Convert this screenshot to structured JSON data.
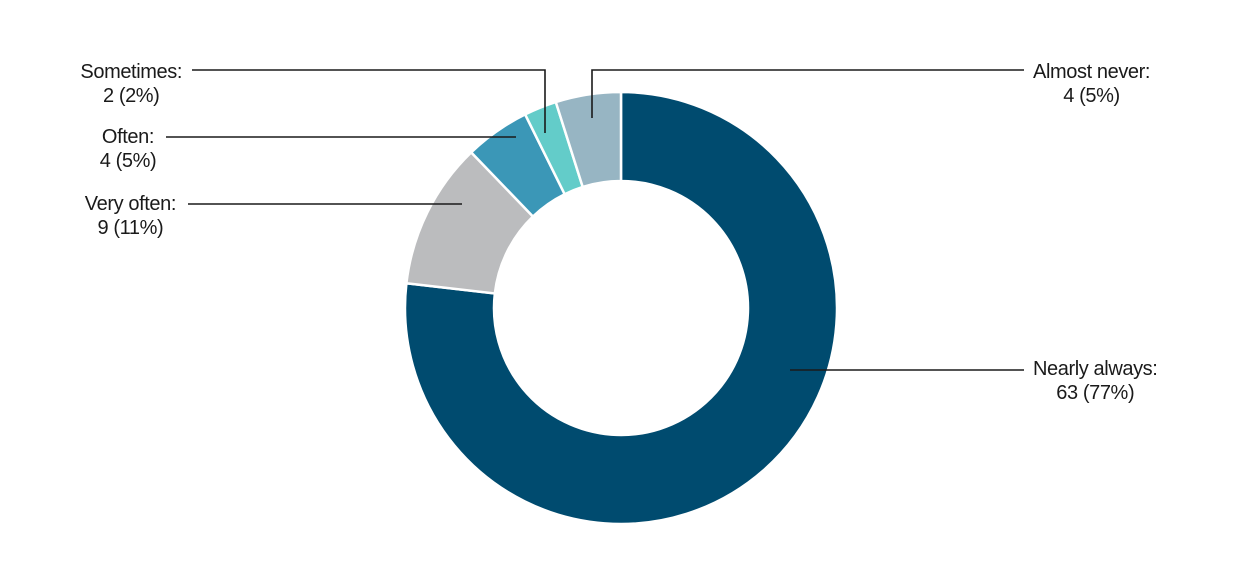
{
  "chart_data": {
    "type": "pie",
    "variant": "donut",
    "title": "",
    "legend": "none",
    "slices": [
      {
        "label": "Nearly always",
        "value": 63,
        "percent": "77%",
        "color": "#004b6f",
        "line1": "Nearly always:",
        "line2": "63 (77%)"
      },
      {
        "label": "Very often",
        "value": 9,
        "percent": "11%",
        "color": "#bbbcbe",
        "line1": "Very often:",
        "line2": "9 (11%)"
      },
      {
        "label": "Often",
        "value": 4,
        "percent": "5%",
        "color": "#3b97b7",
        "line1": "Often:",
        "line2": "4 (5%)"
      },
      {
        "label": "Sometimes",
        "value": 2,
        "percent": "2%",
        "color": "#63ccc9",
        "line1": "Sometimes:",
        "line2": "2 (2%)"
      },
      {
        "label": "Almost never",
        "value": 4,
        "percent": "5%",
        "color": "#97b5c3",
        "line1": "Almost never:",
        "line2": "4 (5%)"
      }
    ]
  }
}
